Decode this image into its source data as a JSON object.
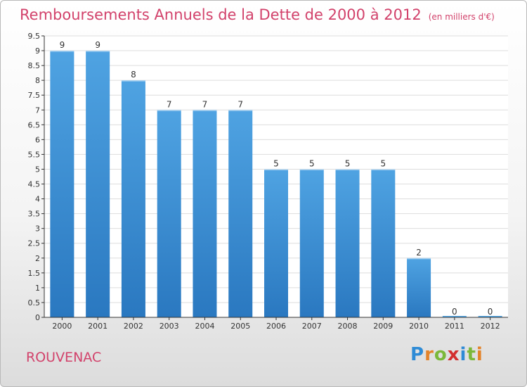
{
  "title": "Remboursements Annuels de la Dette de 2000 à 2012",
  "unit": "(en milliers d'€)",
  "place": "ROUVENAC",
  "logo": {
    "text": "Proxiti",
    "letters": [
      "P",
      "r",
      "o",
      "x",
      "i",
      "t",
      "i"
    ],
    "colors": [
      "#2e8bd6",
      "#e3832a",
      "#7bb83a",
      "#d32f2f",
      "#2e8bd6",
      "#7bb83a",
      "#e3832a"
    ]
  },
  "colors": {
    "bar": "#4fa3e2",
    "bar_dark": "#2a78c0",
    "title": "#d2426b",
    "grid": "#dddddd",
    "axis": "#333333"
  },
  "chart_data": {
    "type": "bar",
    "title": "Remboursements Annuels de la Dette de 2000 à 2012",
    "categories": [
      "2000",
      "2001",
      "2002",
      "2003",
      "2004",
      "2005",
      "2006",
      "2007",
      "2008",
      "2009",
      "2010",
      "2011",
      "2012"
    ],
    "values": [
      9,
      9,
      8,
      7,
      7,
      7,
      5,
      5,
      5,
      5,
      2,
      0,
      0
    ],
    "ylim": [
      0,
      9.5
    ],
    "yticks": [
      "0",
      "0.5",
      "1",
      "1.5",
      "2",
      "2.5",
      "3",
      "3.5",
      "4",
      "4.5",
      "5",
      "5.5",
      "6",
      "6.5",
      "7",
      "7.5",
      "8",
      "8.5",
      "9",
      "9.5"
    ],
    "grid": true
  }
}
